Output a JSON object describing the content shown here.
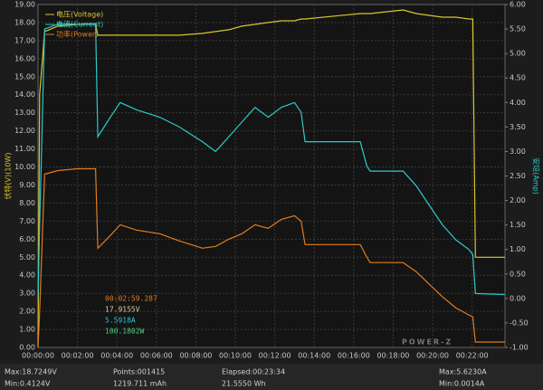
{
  "chart_data": {
    "type": "line",
    "ylabel": "伏特(V)(10W)",
    "y2label": "安培(Amp)",
    "x": [
      0,
      5,
      20,
      60,
      120,
      175,
      182,
      220,
      250,
      300,
      370,
      430,
      500,
      540,
      580,
      620,
      660,
      700,
      740,
      780,
      800,
      812,
      980,
      1000,
      1010,
      1110,
      1150,
      1190,
      1230,
      1270,
      1310,
      1322,
      1330,
      1420
    ],
    "xlim": [
      0,
      1420
    ],
    "xticks": [
      {
        "value": 0,
        "label": "00:00:00"
      },
      {
        "value": 120,
        "label": "00:02:00"
      },
      {
        "value": 240,
        "label": "00:04:00"
      },
      {
        "value": 360,
        "label": "00:06:00"
      },
      {
        "value": 480,
        "label": "00:08:00"
      },
      {
        "value": 600,
        "label": "00:10:00"
      },
      {
        "value": 720,
        "label": "00:12:00"
      },
      {
        "value": 840,
        "label": "00:14:00"
      },
      {
        "value": 960,
        "label": "00:16:00"
      },
      {
        "value": 1080,
        "label": "00:18:00"
      },
      {
        "value": 1200,
        "label": "00:20:00"
      },
      {
        "value": 1320,
        "label": "00:22:00"
      }
    ],
    "ylim": [
      0,
      19
    ],
    "yticks": [
      {
        "value": 0,
        "label": "0.00"
      },
      {
        "value": 1,
        "label": "1.00"
      },
      {
        "value": 2,
        "label": "2.00"
      },
      {
        "value": 3,
        "label": "3.00"
      },
      {
        "value": 4,
        "label": "4.00"
      },
      {
        "value": 5,
        "label": "5.00"
      },
      {
        "value": 6,
        "label": "6.00"
      },
      {
        "value": 7,
        "label": "7.00"
      },
      {
        "value": 8,
        "label": "8.00"
      },
      {
        "value": 9,
        "label": "9.00"
      },
      {
        "value": 10,
        "label": "10.00"
      },
      {
        "value": 11,
        "label": "11.00"
      },
      {
        "value": 12,
        "label": "12.00"
      },
      {
        "value": 13,
        "label": "13.00"
      },
      {
        "value": 14,
        "label": "14.00"
      },
      {
        "value": 15,
        "label": "15.00"
      },
      {
        "value": 16,
        "label": "16.00"
      },
      {
        "value": 17,
        "label": "17.00"
      },
      {
        "value": 18,
        "label": "18.00"
      },
      {
        "value": 19,
        "label": "19.00"
      }
    ],
    "y2lim": [
      -1,
      6
    ],
    "y2ticks": [
      {
        "value": -1,
        "label": "-1.00"
      },
      {
        "value": -0.5,
        "label": "-0.50"
      },
      {
        "value": 0,
        "label": "0.00"
      },
      {
        "value": 0.5,
        "label": "0.50"
      },
      {
        "value": 1,
        "label": "1.00"
      },
      {
        "value": 1.5,
        "label": "1.50"
      },
      {
        "value": 2,
        "label": "2.00"
      },
      {
        "value": 2.5,
        "label": "2.50"
      },
      {
        "value": 3,
        "label": "3.00"
      },
      {
        "value": 3.5,
        "label": "3.50"
      },
      {
        "value": 4,
        "label": "4.00"
      },
      {
        "value": 4.5,
        "label": "4.50"
      },
      {
        "value": 5,
        "label": "5.00"
      },
      {
        "value": 5.5,
        "label": "5.50"
      },
      {
        "value": 6,
        "label": "6.00"
      }
    ],
    "grid": true,
    "series": [
      {
        "name": "电压(Voltage)",
        "color": "#d8c62c",
        "axis": "y",
        "values": [
          0,
          14,
          17.5,
          17.8,
          17.9,
          17.9,
          17.3,
          17.3,
          17.3,
          17.3,
          17.3,
          17.3,
          17.4,
          17.5,
          17.6,
          17.8,
          17.9,
          18.0,
          18.1,
          18.1,
          18.2,
          18.2,
          18.5,
          18.5,
          18.5,
          18.7,
          18.5,
          18.4,
          18.3,
          18.3,
          18.2,
          18.2,
          5.0,
          5.0
        ]
      },
      {
        "name": "电流(Current)",
        "color": "#2ec9c9",
        "axis": "y2",
        "values": [
          0,
          1.5,
          5.5,
          5.6,
          5.6,
          5.6,
          3.3,
          3.7,
          4.0,
          3.85,
          3.7,
          3.5,
          3.2,
          3.0,
          3.3,
          3.6,
          3.9,
          3.7,
          3.9,
          4.0,
          3.8,
          3.2,
          3.2,
          2.7,
          2.6,
          2.6,
          2.3,
          1.9,
          1.5,
          1.2,
          1.0,
          0.9,
          0.1,
          0.08
        ]
      },
      {
        "name": "功率(Power)",
        "color": "#e07c1e",
        "axis": "y",
        "values": [
          0,
          2,
          9.6,
          9.8,
          9.9,
          9.9,
          5.5,
          6.2,
          6.8,
          6.5,
          6.3,
          5.9,
          5.5,
          5.6,
          6.0,
          6.3,
          6.8,
          6.6,
          7.1,
          7.3,
          7.0,
          5.7,
          5.7,
          5.0,
          4.7,
          4.7,
          4.2,
          3.5,
          2.8,
          2.2,
          1.8,
          1.7,
          0.3,
          0.3
        ]
      }
    ]
  },
  "readout": [
    {
      "text": "00:02:59.287",
      "color": "#e07c1e"
    },
    {
      "text": "17.9155V",
      "color": "#d8d0a0"
    },
    {
      "text": "5.5918A",
      "color": "#2ec9c9"
    },
    {
      "text": "100.1802W",
      "color": "#4fd27c"
    }
  ],
  "logo": "POWER-Z",
  "footer": {
    "row1": [
      "Max:18.7249V",
      "Points:001415",
      "Elapsed:00:23:34",
      "Max:5.6230A"
    ],
    "row2": [
      "Min:0.4124V",
      "1219.711 mAh",
      "21.5550 Wh",
      "Min:0.0014A"
    ]
  }
}
